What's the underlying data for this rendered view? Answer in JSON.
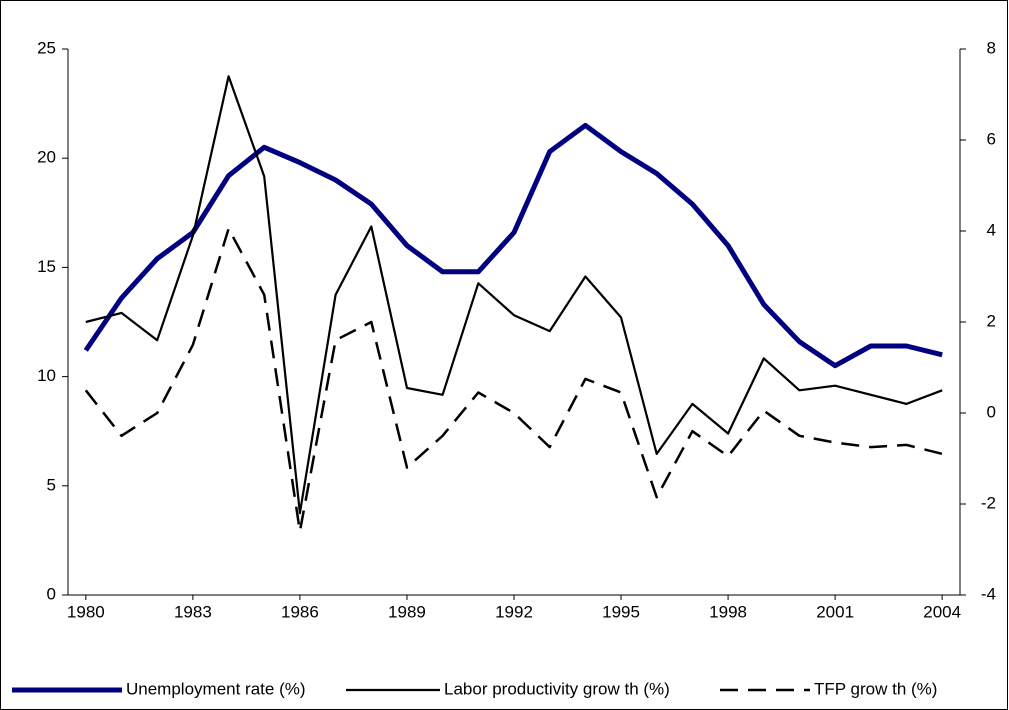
{
  "chart_data": {
    "type": "line",
    "categories": [
      "1980",
      null,
      null,
      "1983",
      null,
      null,
      "1986",
      null,
      null,
      "1989",
      null,
      null,
      "1992",
      null,
      null,
      "1995",
      null,
      null,
      "1998",
      null,
      null,
      "2001",
      null,
      null,
      "2004"
    ],
    "ylim": [
      0,
      25
    ],
    "yticks": [
      0,
      5,
      10,
      15,
      20,
      25
    ],
    "y2lim": [
      -4,
      8
    ],
    "y2ticks": [
      -4,
      -2,
      0,
      2,
      4,
      6,
      8
    ],
    "legend": "bottom",
    "series": [
      {
        "name": "Unemployment rate (%)",
        "color": "#000080",
        "style": "thick",
        "values": [
          11.2,
          13.6,
          15.4,
          16.6,
          19.2,
          20.5,
          19.8,
          19.0,
          17.9,
          16.0,
          14.8,
          14.8,
          16.6,
          20.3,
          21.5,
          20.3,
          19.3,
          17.9,
          16.0,
          13.3,
          11.6,
          10.5,
          11.4,
          11.4,
          11.0
        ]
      },
      {
        "name": "Labor productivity grow th (%)",
        "color": "#000000",
        "style": "solid",
        "axis": "y2",
        "values": [
          2.0,
          2.2,
          1.6,
          3.9,
          7.4,
          5.2,
          -2.2,
          2.6,
          4.1,
          0.55,
          0.4,
          2.85,
          2.15,
          1.8,
          3.0,
          2.1,
          -0.9,
          0.2,
          -0.45,
          1.2,
          0.5,
          0.6,
          0.4,
          0.2,
          0.5
        ]
      },
      {
        "name": "TFP grow th (%)",
        "color": "#000000",
        "style": "dashed",
        "axis": "y2",
        "values": [
          0.5,
          -0.5,
          0,
          1.5,
          4.05,
          2.6,
          -2.6,
          1.6,
          2.0,
          -1.2,
          -0.5,
          0.45,
          0,
          -0.75,
          0.75,
          0.45,
          -1.85,
          -0.4,
          -0.95,
          0.05,
          -0.5,
          -0.65,
          -0.75,
          -0.7,
          -0.9
        ]
      }
    ]
  }
}
